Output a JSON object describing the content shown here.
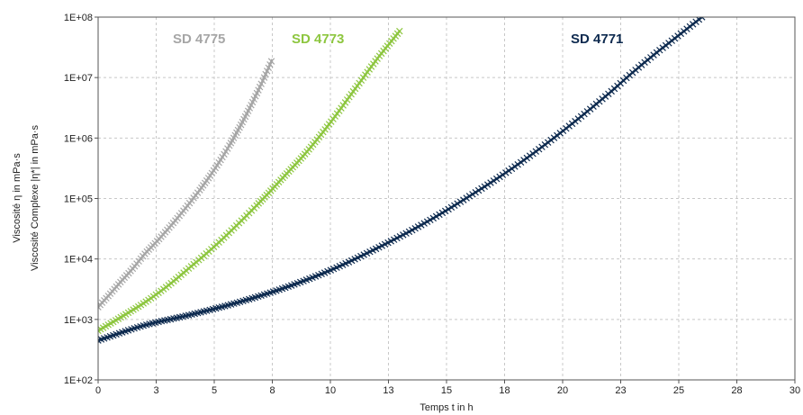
{
  "chart_data": {
    "type": "scatter",
    "title": "",
    "xlabel": "Temps t in h",
    "ylabel_lines": [
      "Viscosité η in mPa·s",
      "Viscosité Complexe |η*| in mPa·s"
    ],
    "xlim": [
      0,
      30
    ],
    "ylim": [
      100,
      100000000
    ],
    "yscale": "log",
    "grid": true,
    "x_ticks": [
      "0",
      "3",
      "5",
      "8",
      "10",
      "13",
      "15",
      "18",
      "20",
      "23",
      "25",
      "28",
      "30"
    ],
    "x_tick_values": [
      0,
      2.5,
      5,
      7.5,
      10,
      12.5,
      15,
      17.5,
      20,
      22.5,
      25,
      27.5,
      30
    ],
    "y_ticks": [
      "1E+02",
      "1E+03",
      "1E+04",
      "1E+05",
      "1E+06",
      "1E+07",
      "1E+08"
    ],
    "y_tick_values": [
      100,
      1000,
      10000,
      100000,
      1000000,
      10000000,
      100000000
    ],
    "series": [
      {
        "name": "SD 4775",
        "color": "#a6a6a6",
        "marker": "x",
        "x": [
          0,
          0.5,
          1,
          1.5,
          2,
          2.5,
          3,
          3.5,
          4,
          4.5,
          5,
          5.5,
          6,
          6.5,
          7,
          7.5
        ],
        "y": [
          1600,
          2600,
          4300,
          7000,
          12000,
          19000,
          31000,
          52000,
          90000,
          160000,
          300000,
          600000,
          1300000,
          3000000,
          7500000,
          20000000
        ]
      },
      {
        "name": "SD 4773",
        "color": "#8dc63f",
        "marker": "x",
        "x": [
          0,
          1,
          2,
          3,
          4,
          5,
          6,
          7,
          8,
          9,
          10,
          11,
          12,
          13
        ],
        "y": [
          650,
          1100,
          1900,
          3600,
          7500,
          16000,
          37000,
          90000,
          230000,
          600000,
          1800000,
          6000000,
          20000000,
          60000000
        ]
      },
      {
        "name": "SD 4771",
        "color": "#0d2a4f",
        "marker": "x",
        "x": [
          0,
          2,
          4,
          6,
          8,
          10,
          12,
          14,
          16,
          18,
          20,
          22,
          23,
          24,
          25,
          26
        ],
        "y": [
          450,
          800,
          1200,
          1900,
          3300,
          6500,
          15000,
          38000,
          110000,
          350000,
          1300000,
          5500000,
          12000000,
          25000000,
          50000000,
          100000000
        ]
      }
    ]
  }
}
